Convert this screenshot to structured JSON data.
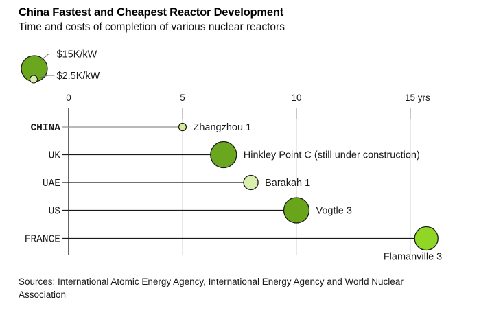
{
  "header": {
    "title": "China Fastest and Cheapest Reactor Development",
    "subtitle": "Time and costs of completion of various nuclear reactors"
  },
  "footer": {
    "sources": "Sources: International Atomic Energy Agency, International Energy Agency and World Nuclear Association"
  },
  "chart_data": {
    "type": "scatter",
    "title": "China Fastest and Cheapest Reactor Development",
    "subtitle": "Time and costs of completion of various nuclear reactors",
    "bubble_size_meaning": "construction cost per kW",
    "x_axis": {
      "ticks": [
        0,
        5,
        10,
        15
      ],
      "tick_labels": [
        "0",
        "5",
        "10",
        "15 yrs"
      ],
      "unit": "yrs",
      "range": [
        0,
        17.5
      ],
      "gridlines": true
    },
    "legend": {
      "large": {
        "label": "$15K/kW",
        "radius_px": 19,
        "color": "#6AA71E"
      },
      "small": {
        "label": "$2.5K/kW",
        "radius_px": 5.5,
        "color": "#D9EFAD"
      }
    },
    "series": [
      {
        "country": "CHINA",
        "reactor": "Zhangzhou 1",
        "years": 5.0,
        "radius_px": 5.5,
        "color": "#D2EB9B",
        "leader_color": "#8F8F8F",
        "bold_country": true,
        "label_position": "right"
      },
      {
        "country": "UK",
        "reactor": "Hinkley Point C (still under construction)",
        "years": 6.8,
        "radius_px": 19,
        "color": "#6AA71E",
        "leader_color": "#1A1A1A",
        "bold_country": false,
        "label_position": "right"
      },
      {
        "country": "UAE",
        "reactor": "Barakah 1",
        "years": 8.0,
        "radius_px": 10.5,
        "color": "#D9EFAD",
        "leader_color": "#1A1A1A",
        "bold_country": false,
        "label_position": "right"
      },
      {
        "country": "US",
        "reactor": "Vogtle 3",
        "years": 10.0,
        "radius_px": 18.5,
        "color": "#68A51B",
        "leader_color": "#1A1A1A",
        "bold_country": false,
        "label_position": "right"
      },
      {
        "country": "FRANCE",
        "reactor": "Flamanville 3",
        "years": 15.7,
        "radius_px": 17,
        "color": "#8FD724",
        "leader_color": "#1A1A1A",
        "bold_country": false,
        "label_position": "below"
      }
    ],
    "colors": {
      "axis": "#000000",
      "gridline": "#D8D8D8",
      "tick_stub": "#A6A6A6",
      "bubble_outline": "#1A1A1A",
      "text": "#1A1A1A"
    }
  }
}
